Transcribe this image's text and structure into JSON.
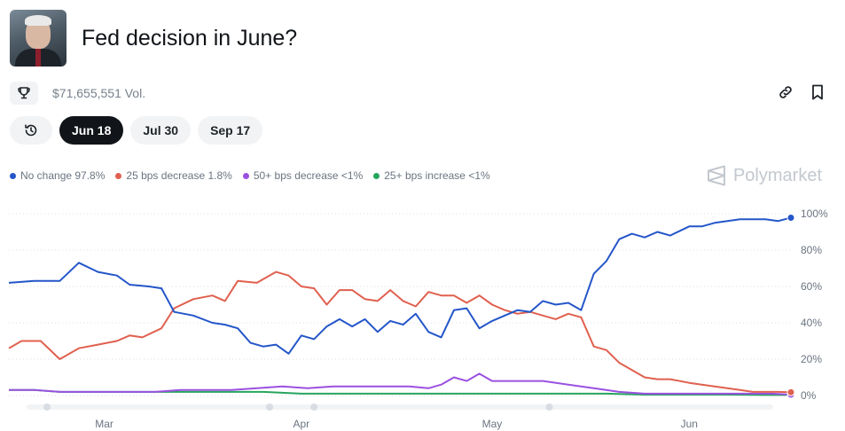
{
  "header": {
    "title": "Fed decision in June?"
  },
  "stats": {
    "volume": "$71,655,551 Vol."
  },
  "tabs": [
    {
      "label": "Jun 18",
      "active": true
    },
    {
      "label": "Jul 30",
      "active": false
    },
    {
      "label": "Sep 17",
      "active": false
    }
  ],
  "brand": {
    "name": "Polymarket"
  },
  "icons": [
    "trophy-icon",
    "link-icon",
    "bookmark-icon",
    "history-icon",
    "polymarket-logo-icon"
  ],
  "chart_data": {
    "type": "line",
    "x_ticks": [
      "Mar",
      "Apr",
      "May",
      "Jun"
    ],
    "y_ticks": [
      "100%",
      "80%",
      "60%",
      "40%",
      "20%",
      "0%"
    ],
    "ylim": [
      0,
      100
    ],
    "x_range": [
      "Feb 14",
      "Jun 17"
    ],
    "grid": true,
    "legend_position": "top-left",
    "series": [
      {
        "name": "No change",
        "legend_label": "No change 97.8%",
        "color": "#2456c9",
        "points": [
          [
            "Feb 14",
            62
          ],
          [
            "Feb 18",
            63
          ],
          [
            "Feb 22",
            63
          ],
          [
            "Feb 25",
            73
          ],
          [
            "Feb 28",
            68
          ],
          [
            "Mar 3",
            66
          ],
          [
            "Mar 5",
            61
          ],
          [
            "Mar 8",
            60
          ],
          [
            "Mar 10",
            59
          ],
          [
            "Mar 12",
            46
          ],
          [
            "Mar 15",
            44
          ],
          [
            "Mar 18",
            40
          ],
          [
            "Mar 20",
            39
          ],
          [
            "Mar 22",
            37
          ],
          [
            "Mar 24",
            29
          ],
          [
            "Mar 26",
            27
          ],
          [
            "Mar 28",
            28
          ],
          [
            "Mar 30",
            23
          ],
          [
            "Apr 1",
            33
          ],
          [
            "Apr 3",
            31
          ],
          [
            "Apr 5",
            38
          ],
          [
            "Apr 7",
            42
          ],
          [
            "Apr 9",
            38
          ],
          [
            "Apr 11",
            42
          ],
          [
            "Apr 13",
            35
          ],
          [
            "Apr 15",
            41
          ],
          [
            "Apr 17",
            39
          ],
          [
            "Apr 19",
            45
          ],
          [
            "Apr 21",
            35
          ],
          [
            "Apr 23",
            32
          ],
          [
            "Apr 25",
            47
          ],
          [
            "Apr 27",
            48
          ],
          [
            "Apr 29",
            37
          ],
          [
            "May 1",
            41
          ],
          [
            "May 3",
            44
          ],
          [
            "May 5",
            47
          ],
          [
            "May 7",
            46
          ],
          [
            "May 9",
            52
          ],
          [
            "May 11",
            50
          ],
          [
            "May 13",
            51
          ],
          [
            "May 15",
            47
          ],
          [
            "May 17",
            67
          ],
          [
            "May 19",
            74
          ],
          [
            "May 21",
            86
          ],
          [
            "May 23",
            89
          ],
          [
            "May 25",
            87
          ],
          [
            "May 27",
            90
          ],
          [
            "May 29",
            88
          ],
          [
            "Jun 1",
            93
          ],
          [
            "Jun 3",
            93
          ],
          [
            "Jun 5",
            95
          ],
          [
            "Jun 7",
            96
          ],
          [
            "Jun 9",
            97
          ],
          [
            "Jun 11",
            97
          ],
          [
            "Jun 13",
            97
          ],
          [
            "Jun 15",
            96
          ],
          [
            "Jun 17",
            97.8
          ]
        ]
      },
      {
        "name": "25 bps decrease",
        "legend_label": "25 bps decrease 1.8%",
        "color": "#e0604f",
        "points": [
          [
            "Feb 14",
            26
          ],
          [
            "Feb 16",
            30
          ],
          [
            "Feb 19",
            30
          ],
          [
            "Feb 22",
            20
          ],
          [
            "Feb 25",
            26
          ],
          [
            "Feb 28",
            28
          ],
          [
            "Mar 3",
            30
          ],
          [
            "Mar 5",
            33
          ],
          [
            "Mar 7",
            32
          ],
          [
            "Mar 10",
            37
          ],
          [
            "Mar 12",
            48
          ],
          [
            "Mar 15",
            53
          ],
          [
            "Mar 18",
            55
          ],
          [
            "Mar 20",
            52
          ],
          [
            "Mar 22",
            63
          ],
          [
            "Mar 25",
            62
          ],
          [
            "Mar 28",
            68
          ],
          [
            "Mar 30",
            66
          ],
          [
            "Apr 1",
            60
          ],
          [
            "Apr 3",
            59
          ],
          [
            "Apr 5",
            50
          ],
          [
            "Apr 7",
            58
          ],
          [
            "Apr 9",
            58
          ],
          [
            "Apr 11",
            53
          ],
          [
            "Apr 13",
            52
          ],
          [
            "Apr 15",
            58
          ],
          [
            "Apr 17",
            52
          ],
          [
            "Apr 19",
            49
          ],
          [
            "Apr 21",
            57
          ],
          [
            "Apr 23",
            55
          ],
          [
            "Apr 25",
            55
          ],
          [
            "Apr 27",
            51
          ],
          [
            "Apr 29",
            55
          ],
          [
            "May 1",
            50
          ],
          [
            "May 3",
            47
          ],
          [
            "May 5",
            45
          ],
          [
            "May 7",
            46
          ],
          [
            "May 9",
            44
          ],
          [
            "May 11",
            42
          ],
          [
            "May 13",
            45
          ],
          [
            "May 15",
            43
          ],
          [
            "May 17",
            27
          ],
          [
            "May 19",
            25
          ],
          [
            "May 21",
            18
          ],
          [
            "May 23",
            14
          ],
          [
            "May 25",
            10
          ],
          [
            "May 27",
            9
          ],
          [
            "May 29",
            9
          ],
          [
            "Jun 1",
            7
          ],
          [
            "Jun 3",
            6
          ],
          [
            "Jun 5",
            5
          ],
          [
            "Jun 7",
            4
          ],
          [
            "Jun 9",
            3
          ],
          [
            "Jun 11",
            2
          ],
          [
            "Jun 13",
            2
          ],
          [
            "Jun 15",
            2
          ],
          [
            "Jun 17",
            1.8
          ]
        ]
      },
      {
        "name": "50+ bps decrease",
        "legend_label": "50+ bps decrease <1%",
        "color": "#9b51e0",
        "points": [
          [
            "Feb 14",
            3
          ],
          [
            "Feb 18",
            3
          ],
          [
            "Feb 22",
            2
          ],
          [
            "Feb 26",
            2
          ],
          [
            "Mar 1",
            2
          ],
          [
            "Mar 5",
            2
          ],
          [
            "Mar 9",
            2
          ],
          [
            "Mar 13",
            3
          ],
          [
            "Mar 17",
            3
          ],
          [
            "Mar 21",
            3
          ],
          [
            "Mar 25",
            4
          ],
          [
            "Mar 29",
            5
          ],
          [
            "Apr 2",
            4
          ],
          [
            "Apr 6",
            5
          ],
          [
            "Apr 10",
            5
          ],
          [
            "Apr 14",
            5
          ],
          [
            "Apr 18",
            5
          ],
          [
            "Apr 21",
            4
          ],
          [
            "Apr 23",
            6
          ],
          [
            "Apr 25",
            10
          ],
          [
            "Apr 27",
            8
          ],
          [
            "Apr 29",
            12
          ],
          [
            "May 1",
            8
          ],
          [
            "May 5",
            8
          ],
          [
            "May 9",
            8
          ],
          [
            "May 13",
            6
          ],
          [
            "May 17",
            4
          ],
          [
            "May 21",
            2
          ],
          [
            "May 25",
            1
          ],
          [
            "May 29",
            1
          ],
          [
            "Jun 2",
            1
          ],
          [
            "Jun 6",
            1
          ],
          [
            "Jun 10",
            1
          ],
          [
            "Jun 14",
            1
          ],
          [
            "Jun 17",
            0.5
          ]
        ]
      },
      {
        "name": "25+ bps increase",
        "legend_label": "25+ bps increase <1%",
        "color": "#27a55f",
        "points": [
          [
            "Feb 14",
            3
          ],
          [
            "Feb 18",
            3
          ],
          [
            "Feb 22",
            2
          ],
          [
            "Feb 26",
            2
          ],
          [
            "Mar 2",
            2
          ],
          [
            "Mar 8",
            2
          ],
          [
            "Mar 14",
            2
          ],
          [
            "Mar 20",
            2
          ],
          [
            "Mar 26",
            2
          ],
          [
            "Apr 1",
            1
          ],
          [
            "Apr 7",
            1
          ],
          [
            "Apr 13",
            1
          ],
          [
            "Apr 19",
            1
          ],
          [
            "Apr 25",
            1
          ],
          [
            "May 1",
            1
          ],
          [
            "May 7",
            1
          ],
          [
            "May 13",
            1
          ],
          [
            "May 19",
            1
          ],
          [
            "May 25",
            0.5
          ],
          [
            "Jun 1",
            0.5
          ],
          [
            "Jun 7",
            0.5
          ],
          [
            "Jun 13",
            0.3
          ],
          [
            "Jun 17",
            0.3
          ]
        ]
      }
    ]
  }
}
